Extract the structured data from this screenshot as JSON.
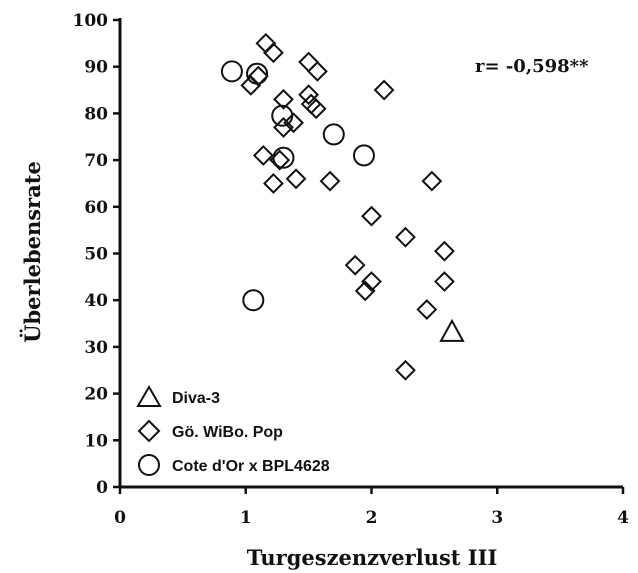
{
  "chart_data": {
    "type": "scatter",
    "title": "",
    "xlabel": "Turgeszenzverlust  III",
    "ylabel": "Überlebensrate",
    "xlim": [
      0,
      4
    ],
    "ylim": [
      0,
      100
    ],
    "x_ticks": [
      "0",
      "1",
      "2",
      "3",
      "4"
    ],
    "y_ticks": [
      "0",
      "10",
      "20",
      "30",
      "40",
      "50",
      "60",
      "70",
      "80",
      "90",
      "100"
    ],
    "grid": false,
    "legend_position": "bottom-left",
    "annotation": "r= -0,598**",
    "series": [
      {
        "name": "Diva-3",
        "marker": "triangle",
        "points": [
          [
            2.64,
            33
          ]
        ]
      },
      {
        "name": "Gö. WiBo. Pop",
        "marker": "diamond",
        "points": [
          [
            1.16,
            95
          ],
          [
            1.22,
            93
          ],
          [
            1.5,
            91
          ],
          [
            1.57,
            89
          ],
          [
            1.1,
            88
          ],
          [
            1.04,
            86
          ],
          [
            2.1,
            85
          ],
          [
            1.5,
            84
          ],
          [
            1.3,
            83
          ],
          [
            1.52,
            82
          ],
          [
            1.56,
            81
          ],
          [
            1.38,
            78
          ],
          [
            1.3,
            77
          ],
          [
            1.14,
            71
          ],
          [
            1.27,
            70
          ],
          [
            1.4,
            66
          ],
          [
            1.67,
            65.5
          ],
          [
            1.22,
            65
          ],
          [
            2.48,
            65.5
          ],
          [
            2.0,
            58
          ],
          [
            2.27,
            53.5
          ],
          [
            2.58,
            50.5
          ],
          [
            1.87,
            47.5
          ],
          [
            2.0,
            44
          ],
          [
            2.58,
            44
          ],
          [
            1.95,
            42
          ],
          [
            2.44,
            38
          ],
          [
            2.27,
            25
          ]
        ]
      },
      {
        "name": "Cote d'Or x BPL4628",
        "marker": "circle",
        "points": [
          [
            0.89,
            89
          ],
          [
            1.09,
            88.5
          ],
          [
            1.29,
            79.5
          ],
          [
            1.7,
            75.5
          ],
          [
            1.94,
            71
          ],
          [
            1.3,
            70.5
          ],
          [
            1.06,
            40
          ]
        ]
      }
    ]
  }
}
